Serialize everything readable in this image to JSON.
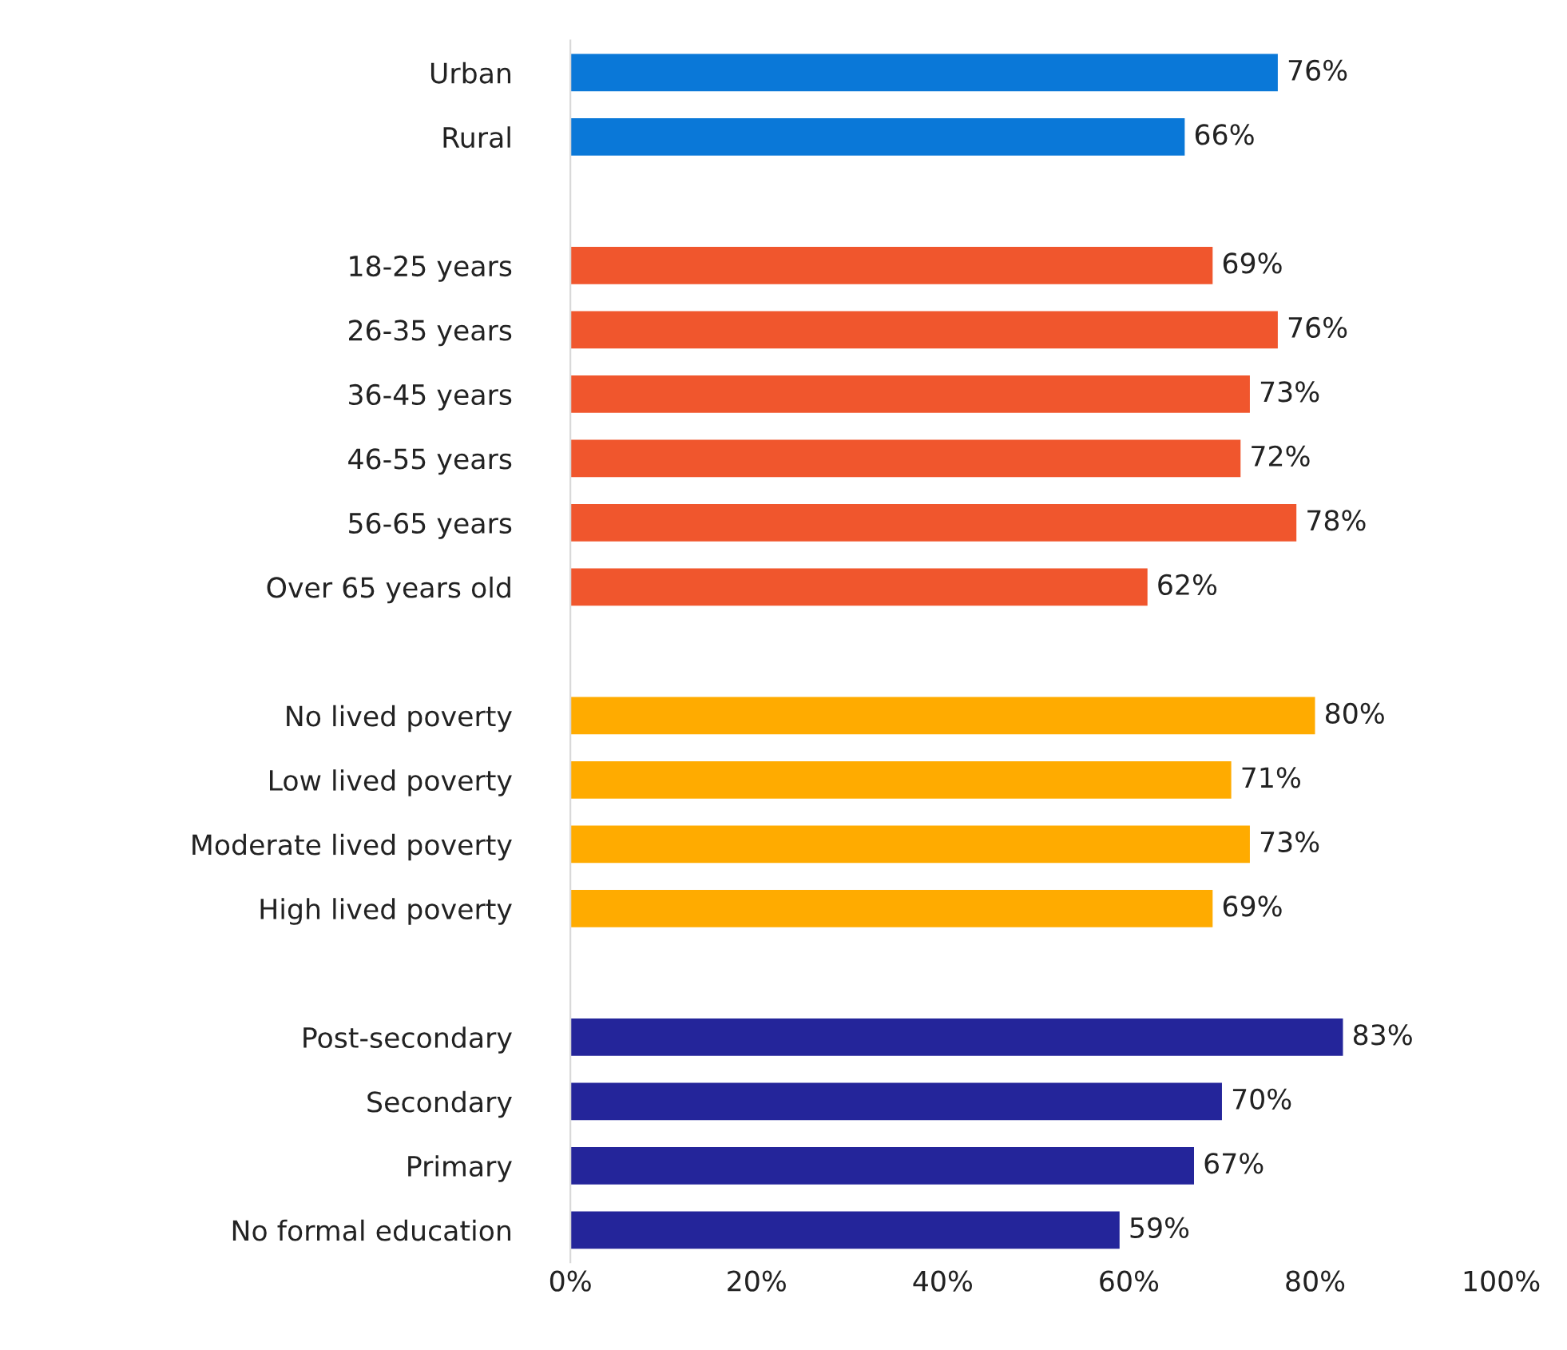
{
  "chart_data": {
    "type": "bar",
    "orientation": "horizontal",
    "categories": [
      "Urban",
      "Rural",
      null,
      "18-25 years",
      "26-35 years",
      "36-45 years",
      "46-55 years",
      "56-65 years",
      "Over 65 years old",
      null,
      "No lived poverty",
      "Low lived poverty",
      "Moderate lived poverty",
      "High lived poverty",
      null,
      "Post-secondary",
      "Secondary",
      "Primary",
      "No formal education"
    ],
    "values": [
      76,
      66,
      null,
      69,
      76,
      73,
      72,
      78,
      62,
      null,
      80,
      71,
      73,
      69,
      null,
      83,
      70,
      67,
      59
    ],
    "colors": [
      "#0a78d8",
      "#0a78d8",
      null,
      "#f0562d",
      "#f0562d",
      "#f0562d",
      "#f0562d",
      "#f0562d",
      "#f0562d",
      null,
      "#ffab00",
      "#ffab00",
      "#ffab00",
      "#ffab00",
      null,
      "#24259a",
      "#24259a",
      "#24259a",
      "#24259a"
    ],
    "value_labels": [
      "76%",
      "66%",
      null,
      "69%",
      "76%",
      "73%",
      "72%",
      "78%",
      "62%",
      null,
      "80%",
      "71%",
      "73%",
      "69%",
      null,
      "83%",
      "70%",
      "67%",
      "59%"
    ],
    "xlim": [
      0,
      100
    ],
    "xticks": [
      {
        "value": 0,
        "label": "0%"
      },
      {
        "value": 20,
        "label": "20%"
      },
      {
        "value": 40,
        "label": "40%"
      },
      {
        "value": 60,
        "label": "60%"
      },
      {
        "value": 80,
        "label": "80%"
      },
      {
        "value": 100,
        "label": "100%"
      }
    ],
    "grid": false,
    "legend": false
  }
}
